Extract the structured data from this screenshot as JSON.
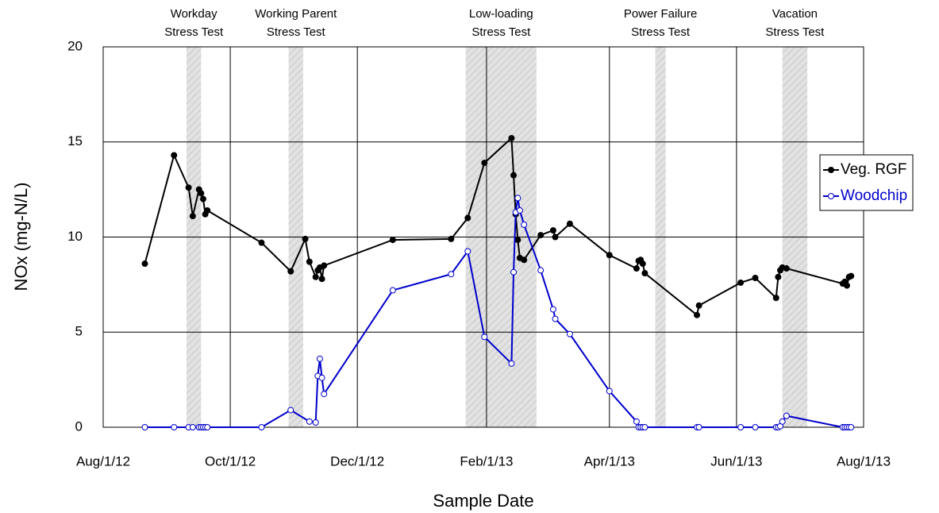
{
  "chart_data": {
    "type": "line",
    "xlabel": "Sample Date",
    "ylabel": "NOx (mg-N/L)",
    "xlim": [
      "2012-08-01",
      "2013-08-01"
    ],
    "xticks": [
      {
        "value": "2012-08-01",
        "label": "Aug/1/12"
      },
      {
        "value": "2012-10-01",
        "label": "Oct/1/12"
      },
      {
        "value": "2012-12-01",
        "label": "Dec/1/12"
      },
      {
        "value": "2013-02-01",
        "label": "Feb/1/13"
      },
      {
        "value": "2013-04-01",
        "label": "Apr/1/13"
      },
      {
        "value": "2013-06-01",
        "label": "Jun/1/13"
      },
      {
        "value": "2013-08-01",
        "label": "Aug/1/13"
      }
    ],
    "ylim": [
      0,
      20
    ],
    "yticks": [
      0,
      5,
      10,
      15,
      20
    ],
    "grid": true,
    "legend": "right",
    "annotations": [
      {
        "text": [
          "Workday",
          "Stress Test"
        ],
        "start": "2012-09-10",
        "end": "2012-09-17"
      },
      {
        "text": [
          "Working Parent",
          "Stress Test"
        ],
        "start": "2012-10-29",
        "end": "2012-11-05"
      },
      {
        "text": [
          "Low-loading",
          "Stress Test"
        ],
        "start": "2013-01-22",
        "end": "2013-02-25"
      },
      {
        "text": [
          "Power Failure",
          "Stress Test"
        ],
        "start": "2013-04-23",
        "end": "2013-04-28"
      },
      {
        "text": [
          "Vacation",
          "Stress Test"
        ],
        "start": "2013-06-23",
        "end": "2013-07-05"
      }
    ],
    "series": [
      {
        "name": "Veg. RGF",
        "color": "#000000",
        "marker": "filled",
        "x": [
          "2012-08-21",
          "2012-09-04",
          "2012-09-11",
          "2012-09-13",
          "2012-09-16",
          "2012-09-17",
          "2012-09-18",
          "2012-09-19",
          "2012-09-20",
          "2012-10-16",
          "2012-10-30",
          "2012-11-06",
          "2012-11-08",
          "2012-11-11",
          "2012-11-12",
          "2012-11-13",
          "2012-11-14",
          "2012-11-15",
          "2012-12-18",
          "2013-01-15",
          "2013-01-23",
          "2013-01-31",
          "2013-02-13",
          "2013-02-14",
          "2013-02-15",
          "2013-02-16",
          "2013-02-17",
          "2013-02-19",
          "2013-02-27",
          "2013-03-05",
          "2013-03-06",
          "2013-03-13",
          "2013-04-01",
          "2013-04-14",
          "2013-04-15",
          "2013-04-16",
          "2013-04-17",
          "2013-04-18",
          "2013-05-13",
          "2013-05-14",
          "2013-06-03",
          "2013-06-10",
          "2013-06-20",
          "2013-06-21",
          "2013-06-22",
          "2013-06-23",
          "2013-06-25",
          "2013-07-22",
          "2013-07-23",
          "2013-07-24",
          "2013-07-25",
          "2013-07-26"
        ],
        "values": [
          8.6,
          14.3,
          12.6,
          11.1,
          12.5,
          12.3,
          12.0,
          11.2,
          11.4,
          9.7,
          8.2,
          9.9,
          8.7,
          7.9,
          8.25,
          8.4,
          7.8,
          8.5,
          9.85,
          9.9,
          11.0,
          13.9,
          15.2,
          13.25,
          11.2,
          9.85,
          8.9,
          8.8,
          10.1,
          10.35,
          10.0,
          10.7,
          9.05,
          8.35,
          8.75,
          8.8,
          8.6,
          8.1,
          5.9,
          6.4,
          7.6,
          7.85,
          6.8,
          7.9,
          8.25,
          8.4,
          8.35,
          7.55,
          7.65,
          7.45,
          7.9,
          7.95
        ]
      },
      {
        "name": "Woodchip",
        "color": "#0000cc",
        "marker": "hollow",
        "x": [
          "2012-08-21",
          "2012-09-04",
          "2012-09-11",
          "2012-09-13",
          "2012-09-16",
          "2012-09-17",
          "2012-09-18",
          "2012-09-19",
          "2012-09-20",
          "2012-10-16",
          "2012-10-30",
          "2012-11-08",
          "2012-11-11",
          "2012-11-12",
          "2012-11-13",
          "2012-11-14",
          "2012-11-15",
          "2012-12-18",
          "2013-01-15",
          "2013-01-23",
          "2013-01-31",
          "2013-02-13",
          "2013-02-14",
          "2013-02-15",
          "2013-02-16",
          "2013-02-17",
          "2013-02-19",
          "2013-02-27",
          "2013-03-05",
          "2013-03-06",
          "2013-03-13",
          "2013-04-01",
          "2013-04-14",
          "2013-04-15",
          "2013-04-16",
          "2013-04-17",
          "2013-04-18",
          "2013-05-13",
          "2013-05-14",
          "2013-06-03",
          "2013-06-10",
          "2013-06-20",
          "2013-06-21",
          "2013-06-22",
          "2013-06-23",
          "2013-06-25",
          "2013-07-22",
          "2013-07-23",
          "2013-07-24",
          "2013-07-25",
          "2013-07-26"
        ],
        "values": [
          0,
          0,
          0,
          0,
          0,
          0,
          0,
          0,
          0,
          0,
          0.9,
          0.3,
          0.25,
          2.7,
          3.6,
          2.6,
          1.75,
          7.2,
          8.05,
          9.25,
          4.75,
          3.35,
          8.15,
          11.3,
          12.05,
          11.4,
          10.65,
          8.25,
          6.2,
          5.7,
          4.9,
          1.9,
          0.3,
          0,
          0,
          0,
          0,
          0,
          0,
          0,
          0,
          0,
          0,
          0.05,
          0.3,
          0.6,
          0,
          0,
          0,
          0,
          0
        ]
      }
    ]
  }
}
